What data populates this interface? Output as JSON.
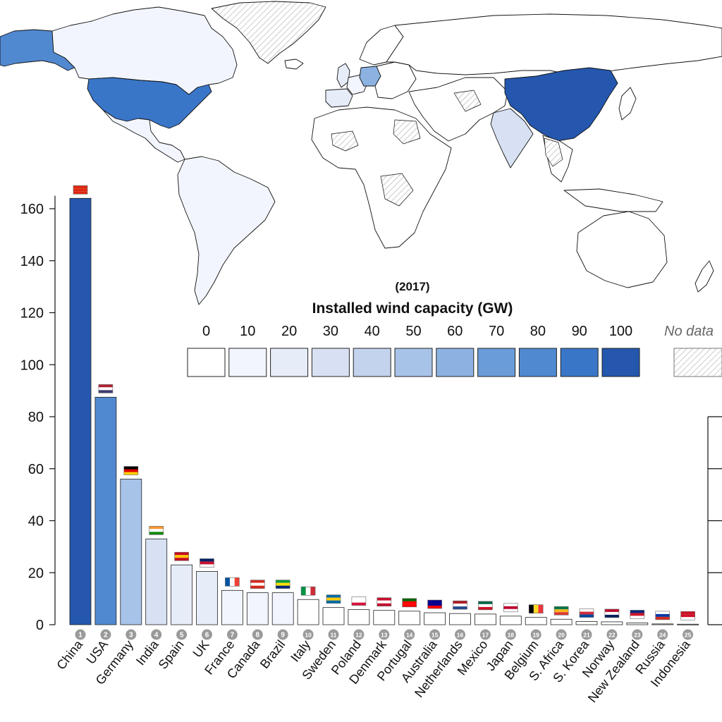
{
  "chart_data": {
    "type": "bar",
    "ylim": [
      0,
      165
    ],
    "yticks": [
      0,
      20,
      40,
      60,
      80,
      100,
      120,
      140,
      160
    ],
    "categories": [
      "China",
      "USA",
      "Germany",
      "India",
      "Spain",
      "UK",
      "France",
      "Canada",
      "Brazil",
      "Italy",
      "Sweden",
      "Poland",
      "Denmark",
      "Portugal",
      "Australia",
      "Netherlands",
      "Mexico",
      "Japan",
      "Belgium",
      "S. Africa",
      "S. Korea",
      "Norway",
      "New Zealand",
      "Russia",
      "Indonesia"
    ],
    "ranks": [
      "1",
      "2",
      "3",
      "4",
      "5",
      "6",
      "7",
      "8",
      "9",
      "10",
      "11",
      "12",
      "13",
      "14",
      "15",
      "16",
      "17",
      "18",
      "19",
      "20",
      "21",
      "22",
      "23",
      "24",
      "25"
    ],
    "values": [
      164,
      87.5,
      56,
      33,
      23,
      20.5,
      13.2,
      12.3,
      12.3,
      9.7,
      6.6,
      5.8,
      5.5,
      5.2,
      4.6,
      4.3,
      4.1,
      3.3,
      2.8,
      2.1,
      1.2,
      1.1,
      0.7,
      0.3,
      0.2
    ],
    "legend": {
      "subtitle": "(2017)",
      "title": "Installed wind capacity (GW)",
      "levels": [
        "0",
        "10",
        "20",
        "30",
        "40",
        "50",
        "60",
        "70",
        "80",
        "90",
        "100"
      ],
      "no_data_label": "No data",
      "colors": [
        "#ffffff",
        "#f2f5fd",
        "#e6ecf8",
        "#d7e1f3",
        "#c3d3ee",
        "#a8c3e8",
        "#8cb2e2",
        "#6a9cd9",
        "#5189d0",
        "#3a76c7",
        "#2457ad"
      ]
    },
    "map_regions": [
      {
        "name": "China",
        "level": 10
      },
      {
        "name": "USA",
        "level": 9
      },
      {
        "name": "Alaska",
        "level": 8
      },
      {
        "name": "Germany",
        "level": 6
      },
      {
        "name": "India",
        "level": 3
      },
      {
        "name": "Spain",
        "level": 2
      },
      {
        "name": "UK",
        "level": 2
      },
      {
        "name": "Canada",
        "level": 1
      },
      {
        "name": "Brazil",
        "level": 1
      },
      {
        "name": "France",
        "level": 1
      },
      {
        "name": "Greenland",
        "level": -1
      }
    ],
    "flag_colors": [
      [
        "#de2910",
        "#de2910",
        "#de2910"
      ],
      [
        "#b22234",
        "#ffffff",
        "#3c3b6e"
      ],
      [
        "#000000",
        "#dd0000",
        "#ffce00"
      ],
      [
        "#ff9933",
        "#ffffff",
        "#138808"
      ],
      [
        "#c60b1e",
        "#ffc400",
        "#c60b1e"
      ],
      [
        "#012169",
        "#c8102e",
        "#ffffff"
      ],
      [
        "#0055a4",
        "#ffffff",
        "#ef4135"
      ],
      [
        "#d52b1e",
        "#ffffff",
        "#d52b1e"
      ],
      [
        "#009c3b",
        "#ffdf00",
        "#002776"
      ],
      [
        "#009246",
        "#ffffff",
        "#ce2b37"
      ],
      [
        "#006aa7",
        "#fecc00",
        "#006aa7"
      ],
      [
        "#ffffff",
        "#ffffff",
        "#dc143c"
      ],
      [
        "#c8102e",
        "#ffffff",
        "#c8102e"
      ],
      [
        "#006600",
        "#ff0000",
        "#ff0000"
      ],
      [
        "#00008b",
        "#00008b",
        "#ff0000"
      ],
      [
        "#ae1c28",
        "#ffffff",
        "#21468b"
      ],
      [
        "#006847",
        "#ffffff",
        "#ce1126"
      ],
      [
        "#ffffff",
        "#bc002d",
        "#ffffff"
      ],
      [
        "#000000",
        "#fdda24",
        "#ef3340"
      ],
      [
        "#007749",
        "#ffb81c",
        "#de3831"
      ],
      [
        "#ffffff",
        "#cd2e3a",
        "#0047a0"
      ],
      [
        "#ba0c2f",
        "#ffffff",
        "#00205b"
      ],
      [
        "#00247d",
        "#cc142b",
        "#ffffff"
      ],
      [
        "#ffffff",
        "#0039a6",
        "#d52b1e"
      ],
      [
        "#ce1126",
        "#ce1126",
        "#ffffff"
      ]
    ]
  }
}
